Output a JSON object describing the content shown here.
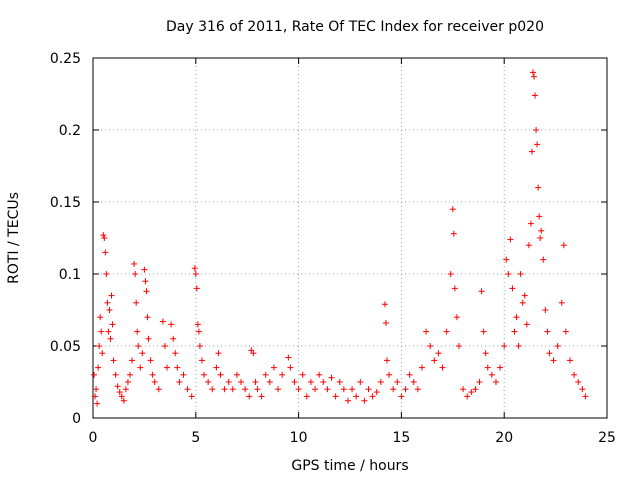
{
  "chart_data": {
    "type": "scatter",
    "title": "Day 316 of 2011, Rate Of TEC Index for receiver p020",
    "xlabel": "GPS time / hours",
    "ylabel": "ROTI / TECUs",
    "xlim": [
      0,
      25
    ],
    "ylim": [
      0,
      0.25
    ],
    "xticks": [
      0,
      5,
      10,
      15,
      20,
      25
    ],
    "xtick_labels": [
      "0",
      "5",
      "10",
      "15",
      "20",
      "25"
    ],
    "yticks": [
      0,
      0.05,
      0.1,
      0.15,
      0.2,
      0.25
    ],
    "ytick_labels": [
      "0",
      "0.05",
      "0.1",
      "0.15",
      "0.2",
      "0.25"
    ],
    "grid": true,
    "marker": "+",
    "color": "#ff0000",
    "series": [
      {
        "points": [
          [
            0.05,
            0.03
          ],
          [
            0.1,
            0.015
          ],
          [
            0.15,
            0.02
          ],
          [
            0.2,
            0.01
          ],
          [
            0.25,
            0.035
          ],
          [
            0.3,
            0.05
          ],
          [
            0.35,
            0.07
          ],
          [
            0.4,
            0.06
          ],
          [
            0.45,
            0.045
          ],
          [
            0.5,
            0.127
          ],
          [
            0.55,
            0.125
          ],
          [
            0.6,
            0.115
          ],
          [
            0.65,
            0.1
          ],
          [
            0.7,
            0.08
          ],
          [
            0.75,
            0.06
          ],
          [
            0.8,
            0.075
          ],
          [
            0.85,
            0.055
          ],
          [
            0.9,
            0.085
          ],
          [
            0.95,
            0.065
          ],
          [
            1.0,
            0.04
          ],
          [
            1.1,
            0.03
          ],
          [
            1.2,
            0.022
          ],
          [
            1.3,
            0.018
          ],
          [
            1.4,
            0.015
          ],
          [
            1.5,
            0.012
          ],
          [
            1.6,
            0.02
          ],
          [
            1.7,
            0.025
          ],
          [
            1.8,
            0.03
          ],
          [
            1.9,
            0.04
          ],
          [
            2.0,
            0.107
          ],
          [
            2.05,
            0.1
          ],
          [
            2.1,
            0.08
          ],
          [
            2.15,
            0.06
          ],
          [
            2.2,
            0.05
          ],
          [
            2.3,
            0.035
          ],
          [
            2.4,
            0.045
          ],
          [
            2.5,
            0.103
          ],
          [
            2.55,
            0.095
          ],
          [
            2.6,
            0.088
          ],
          [
            2.65,
            0.07
          ],
          [
            2.7,
            0.055
          ],
          [
            2.8,
            0.04
          ],
          [
            2.9,
            0.03
          ],
          [
            3.0,
            0.025
          ],
          [
            3.2,
            0.02
          ],
          [
            3.4,
            0.067
          ],
          [
            3.5,
            0.05
          ],
          [
            3.6,
            0.035
          ],
          [
            3.8,
            0.065
          ],
          [
            3.9,
            0.055
          ],
          [
            4.0,
            0.045
          ],
          [
            4.1,
            0.035
          ],
          [
            4.2,
            0.025
          ],
          [
            4.4,
            0.03
          ],
          [
            4.6,
            0.02
          ],
          [
            4.8,
            0.015
          ],
          [
            4.95,
            0.104
          ],
          [
            5.0,
            0.1
          ],
          [
            5.05,
            0.09
          ],
          [
            5.1,
            0.065
          ],
          [
            5.15,
            0.06
          ],
          [
            5.2,
            0.05
          ],
          [
            5.3,
            0.04
          ],
          [
            5.4,
            0.03
          ],
          [
            5.6,
            0.025
          ],
          [
            5.8,
            0.02
          ],
          [
            6.0,
            0.035
          ],
          [
            6.1,
            0.045
          ],
          [
            6.2,
            0.03
          ],
          [
            6.4,
            0.02
          ],
          [
            6.6,
            0.025
          ],
          [
            6.8,
            0.02
          ],
          [
            7.0,
            0.03
          ],
          [
            7.2,
            0.025
          ],
          [
            7.4,
            0.02
          ],
          [
            7.6,
            0.015
          ],
          [
            7.7,
            0.047
          ],
          [
            7.8,
            0.045
          ],
          [
            7.9,
            0.025
          ],
          [
            8.0,
            0.02
          ],
          [
            8.2,
            0.015
          ],
          [
            8.4,
            0.03
          ],
          [
            8.6,
            0.025
          ],
          [
            8.8,
            0.035
          ],
          [
            9.0,
            0.02
          ],
          [
            9.2,
            0.03
          ],
          [
            9.5,
            0.042
          ],
          [
            9.6,
            0.035
          ],
          [
            9.8,
            0.025
          ],
          [
            10.0,
            0.02
          ],
          [
            10.2,
            0.03
          ],
          [
            10.4,
            0.015
          ],
          [
            10.6,
            0.025
          ],
          [
            10.8,
            0.02
          ],
          [
            11.0,
            0.03
          ],
          [
            11.2,
            0.025
          ],
          [
            11.4,
            0.02
          ],
          [
            11.6,
            0.028
          ],
          [
            11.8,
            0.015
          ],
          [
            12.0,
            0.025
          ],
          [
            12.2,
            0.02
          ],
          [
            12.4,
            0.012
          ],
          [
            12.6,
            0.02
          ],
          [
            12.8,
            0.015
          ],
          [
            13.0,
            0.025
          ],
          [
            13.2,
            0.012
          ],
          [
            13.4,
            0.02
          ],
          [
            13.6,
            0.015
          ],
          [
            13.8,
            0.018
          ],
          [
            14.0,
            0.025
          ],
          [
            14.2,
            0.079
          ],
          [
            14.25,
            0.066
          ],
          [
            14.3,
            0.04
          ],
          [
            14.4,
            0.03
          ],
          [
            14.6,
            0.02
          ],
          [
            14.8,
            0.025
          ],
          [
            15.0,
            0.015
          ],
          [
            15.2,
            0.02
          ],
          [
            15.4,
            0.03
          ],
          [
            15.6,
            0.025
          ],
          [
            15.8,
            0.02
          ],
          [
            16.0,
            0.035
          ],
          [
            16.2,
            0.06
          ],
          [
            16.4,
            0.05
          ],
          [
            16.6,
            0.04
          ],
          [
            16.8,
            0.045
          ],
          [
            17.0,
            0.035
          ],
          [
            17.2,
            0.06
          ],
          [
            17.4,
            0.1
          ],
          [
            17.5,
            0.145
          ],
          [
            17.55,
            0.128
          ],
          [
            17.6,
            0.09
          ],
          [
            17.7,
            0.07
          ],
          [
            17.8,
            0.05
          ],
          [
            18.0,
            0.02
          ],
          [
            18.2,
            0.015
          ],
          [
            18.4,
            0.018
          ],
          [
            18.6,
            0.02
          ],
          [
            18.8,
            0.025
          ],
          [
            18.9,
            0.088
          ],
          [
            19.0,
            0.06
          ],
          [
            19.1,
            0.045
          ],
          [
            19.2,
            0.035
          ],
          [
            19.4,
            0.03
          ],
          [
            19.6,
            0.025
          ],
          [
            19.8,
            0.035
          ],
          [
            20.0,
            0.05
          ],
          [
            20.1,
            0.11
          ],
          [
            20.2,
            0.1
          ],
          [
            20.3,
            0.124
          ],
          [
            20.4,
            0.09
          ],
          [
            20.5,
            0.06
          ],
          [
            20.6,
            0.07
          ],
          [
            20.7,
            0.05
          ],
          [
            20.8,
            0.1
          ],
          [
            20.9,
            0.08
          ],
          [
            21.0,
            0.085
          ],
          [
            21.1,
            0.065
          ],
          [
            21.2,
            0.12
          ],
          [
            21.3,
            0.135
          ],
          [
            21.35,
            0.185
          ],
          [
            21.4,
            0.24
          ],
          [
            21.45,
            0.237
          ],
          [
            21.5,
            0.224
          ],
          [
            21.55,
            0.2
          ],
          [
            21.6,
            0.19
          ],
          [
            21.65,
            0.16
          ],
          [
            21.7,
            0.14
          ],
          [
            21.75,
            0.125
          ],
          [
            21.8,
            0.13
          ],
          [
            21.9,
            0.11
          ],
          [
            22.0,
            0.075
          ],
          [
            22.1,
            0.06
          ],
          [
            22.2,
            0.045
          ],
          [
            22.4,
            0.04
          ],
          [
            22.6,
            0.05
          ],
          [
            22.8,
            0.08
          ],
          [
            22.9,
            0.12
          ],
          [
            23.0,
            0.06
          ],
          [
            23.2,
            0.04
          ],
          [
            23.4,
            0.03
          ],
          [
            23.6,
            0.025
          ],
          [
            23.8,
            0.02
          ],
          [
            23.95,
            0.015
          ]
        ]
      }
    ]
  }
}
